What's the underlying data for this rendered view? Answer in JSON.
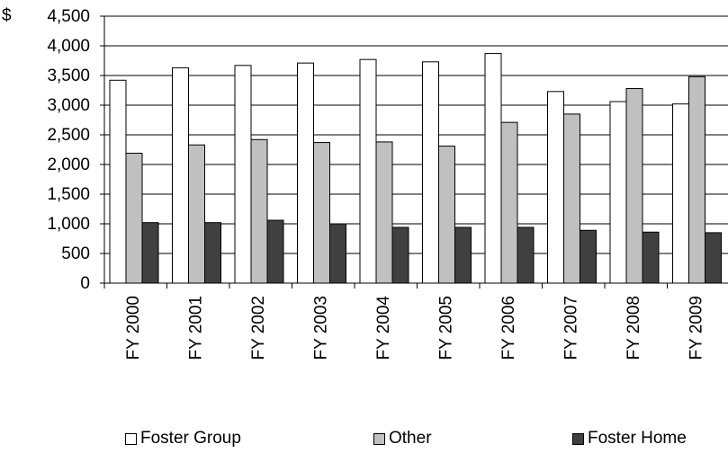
{
  "chart_data": {
    "type": "bar",
    "title": "",
    "xlabel": "",
    "ylabel": "",
    "y_unit_symbol": "$",
    "categories": [
      "FY 2000",
      "FY 2001",
      "FY 2002",
      "FY 2003",
      "FY 2004",
      "FY 2005",
      "FY 2006",
      "FY 2007",
      "FY 2008",
      "FY 2009"
    ],
    "series": [
      {
        "name": "Foster Group",
        "color": "#ffffff",
        "values": [
          3420,
          3630,
          3670,
          3710,
          3770,
          3730,
          3870,
          3230,
          3060,
          3020
        ]
      },
      {
        "name": "Other",
        "color": "#c0c0c0",
        "values": [
          2190,
          2330,
          2420,
          2370,
          2380,
          2310,
          2710,
          2850,
          3280,
          3480
        ]
      },
      {
        "name": "Foster Home",
        "color": "#404040",
        "values": [
          1020,
          1020,
          1060,
          1000,
          940,
          940,
          940,
          890,
          860,
          850
        ]
      }
    ],
    "ylim": [
      0,
      4500
    ],
    "yticks": [
      "0",
      "500",
      "1,000",
      "1,500",
      "2,000",
      "2,500",
      "3,000",
      "3,500",
      "4,000",
      "4,500"
    ],
    "grid": true,
    "legend_position": "bottom"
  }
}
